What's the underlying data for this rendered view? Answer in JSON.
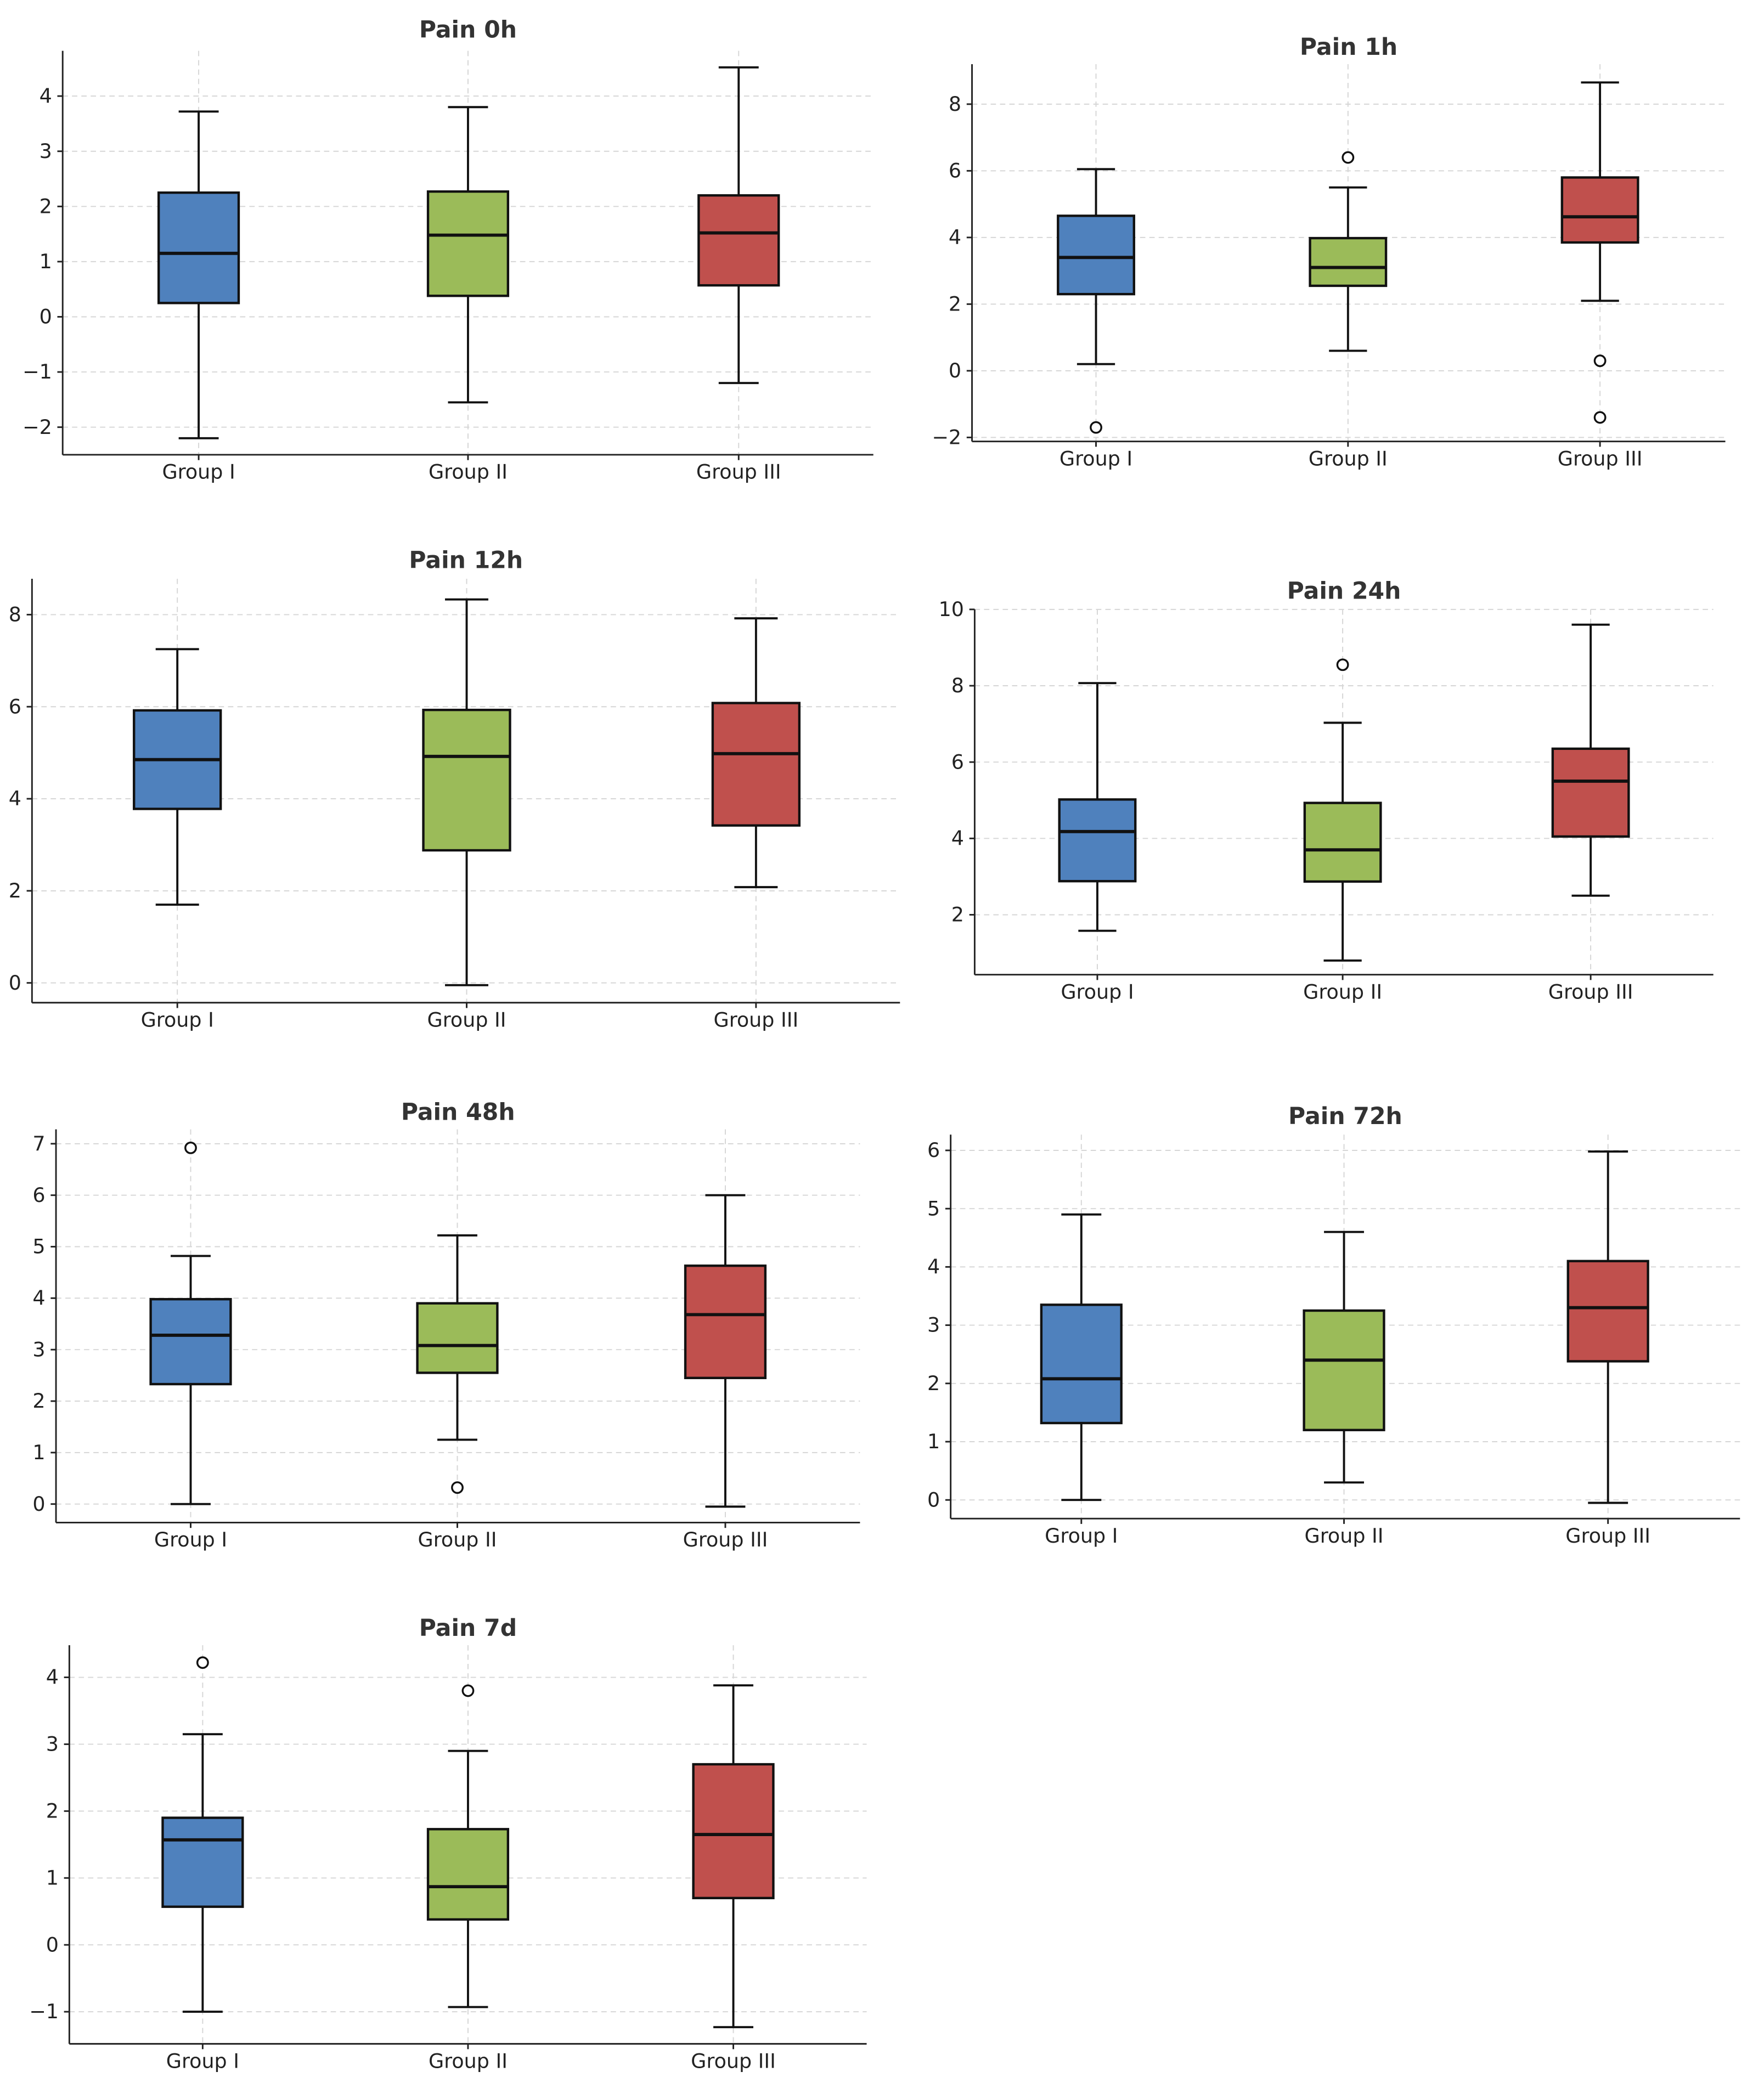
{
  "colors": {
    "Group I": "#4F81BD",
    "Group II": "#9BBB59",
    "Group III": "#C0504D"
  },
  "chart_data": [
    {
      "type": "box",
      "title": "Pain 0h",
      "categories": [
        "Group I",
        "Group II",
        "Group III"
      ],
      "ylim": [
        -2.5,
        4.82
      ],
      "yticks": [
        -2,
        -1,
        0,
        1,
        2,
        3,
        4
      ],
      "ytick_labels": [
        "−2",
        "−1",
        "0",
        "1",
        "2",
        "3",
        "4"
      ],
      "grid": true,
      "boxes": [
        {
          "whislo": -2.2,
          "q1": 0.25,
          "med": 1.15,
          "q3": 2.25,
          "whishi": 3.72,
          "fliers": []
        },
        {
          "whislo": -1.55,
          "q1": 0.38,
          "med": 1.48,
          "q3": 2.27,
          "whishi": 3.8,
          "fliers": []
        },
        {
          "whislo": -1.2,
          "q1": 0.57,
          "med": 1.52,
          "q3": 2.2,
          "whishi": 4.52,
          "fliers": []
        }
      ]
    },
    {
      "type": "box",
      "title": "Pain 1h",
      "categories": [
        "Group I",
        "Group II",
        "Group III"
      ],
      "ylim": [
        -2.12,
        9.2
      ],
      "yticks": [
        -2,
        0,
        2,
        4,
        6,
        8
      ],
      "ytick_labels": [
        "−2",
        "0",
        "2",
        "4",
        "6",
        "8"
      ],
      "grid": true,
      "boxes": [
        {
          "whislo": 0.2,
          "q1": 2.3,
          "med": 3.4,
          "q3": 4.65,
          "whishi": 6.05,
          "fliers": [
            -1.7
          ]
        },
        {
          "whislo": 0.6,
          "q1": 2.55,
          "med": 3.1,
          "q3": 3.98,
          "whishi": 5.5,
          "fliers": [
            6.4
          ]
        },
        {
          "whislo": 2.1,
          "q1": 3.85,
          "med": 4.62,
          "q3": 5.8,
          "whishi": 8.65,
          "fliers": [
            0.3,
            -1.4
          ]
        }
      ]
    },
    {
      "type": "box",
      "title": "Pain 12h",
      "categories": [
        "Group I",
        "Group II",
        "Group III"
      ],
      "ylim": [
        -0.43,
        8.78
      ],
      "yticks": [
        0,
        2,
        4,
        6,
        8
      ],
      "ytick_labels": [
        "0",
        "2",
        "4",
        "6",
        "8"
      ],
      "grid": true,
      "boxes": [
        {
          "whislo": 1.7,
          "q1": 3.78,
          "med": 4.85,
          "q3": 5.92,
          "whishi": 7.25,
          "fliers": []
        },
        {
          "whislo": -0.05,
          "q1": 2.88,
          "med": 4.92,
          "q3": 5.93,
          "whishi": 8.33,
          "fliers": []
        },
        {
          "whislo": 2.08,
          "q1": 3.42,
          "med": 4.98,
          "q3": 6.08,
          "whishi": 7.92,
          "fliers": []
        }
      ]
    },
    {
      "type": "box",
      "title": "Pain 24h",
      "categories": [
        "Group I",
        "Group II",
        "Group III"
      ],
      "ylim": [
        0.43,
        10.0
      ],
      "yticks": [
        2,
        4,
        6,
        8,
        10
      ],
      "ytick_labels": [
        "2",
        "4",
        "6",
        "8",
        "10"
      ],
      "grid": true,
      "boxes": [
        {
          "whislo": 1.58,
          "q1": 2.88,
          "med": 4.18,
          "q3": 5.02,
          "whishi": 8.07,
          "fliers": []
        },
        {
          "whislo": 0.8,
          "q1": 2.87,
          "med": 3.7,
          "q3": 4.93,
          "whishi": 7.03,
          "fliers": [
            8.55
          ]
        },
        {
          "whislo": 2.5,
          "q1": 4.05,
          "med": 5.5,
          "q3": 6.35,
          "whishi": 9.6,
          "fliers": []
        }
      ]
    },
    {
      "type": "box",
      "title": "Pain 48h",
      "categories": [
        "Group I",
        "Group II",
        "Group III"
      ],
      "ylim": [
        -0.36,
        7.28
      ],
      "yticks": [
        0,
        1,
        2,
        3,
        4,
        5,
        6,
        7
      ],
      "ytick_labels": [
        "0",
        "1",
        "2",
        "3",
        "4",
        "5",
        "6",
        "7"
      ],
      "grid": true,
      "boxes": [
        {
          "whislo": 0.0,
          "q1": 2.33,
          "med": 3.28,
          "q3": 3.98,
          "whishi": 4.82,
          "fliers": [
            6.92
          ]
        },
        {
          "whislo": 1.25,
          "q1": 2.55,
          "med": 3.08,
          "q3": 3.9,
          "whishi": 5.22,
          "fliers": [
            0.32
          ]
        },
        {
          "whislo": -0.05,
          "q1": 2.45,
          "med": 3.68,
          "q3": 4.63,
          "whishi": 6.0,
          "fliers": []
        }
      ]
    },
    {
      "type": "box",
      "title": "Pain 72h",
      "categories": [
        "Group I",
        "Group II",
        "Group III"
      ],
      "ylim": [
        -0.32,
        6.27
      ],
      "yticks": [
        0,
        1,
        2,
        3,
        4,
        5,
        6
      ],
      "ytick_labels": [
        "0",
        "1",
        "2",
        "3",
        "4",
        "5",
        "6"
      ],
      "grid": true,
      "boxes": [
        {
          "whislo": 0.0,
          "q1": 1.32,
          "med": 2.08,
          "q3": 3.35,
          "whishi": 4.9,
          "fliers": []
        },
        {
          "whislo": 0.3,
          "q1": 1.2,
          "med": 2.4,
          "q3": 3.25,
          "whishi": 4.6,
          "fliers": []
        },
        {
          "whislo": -0.05,
          "q1": 2.38,
          "med": 3.3,
          "q3": 4.1,
          "whishi": 5.98,
          "fliers": []
        }
      ]
    },
    {
      "type": "box",
      "title": "Pain 7d",
      "categories": [
        "Group I",
        "Group II",
        "Group III"
      ],
      "ylim": [
        -1.48,
        4.48
      ],
      "yticks": [
        -1,
        0,
        1,
        2,
        3,
        4
      ],
      "ytick_labels": [
        "−1",
        "0",
        "1",
        "2",
        "3",
        "4"
      ],
      "grid": true,
      "boxes": [
        {
          "whislo": -1.0,
          "q1": 0.57,
          "med": 1.57,
          "q3": 1.9,
          "whishi": 3.15,
          "fliers": [
            4.22
          ]
        },
        {
          "whislo": -0.93,
          "q1": 0.38,
          "med": 0.87,
          "q3": 1.73,
          "whishi": 2.9,
          "fliers": [
            3.8
          ]
        },
        {
          "whislo": -1.23,
          "q1": 0.7,
          "med": 1.65,
          "q3": 2.7,
          "whishi": 3.88,
          "fliers": []
        }
      ]
    }
  ]
}
